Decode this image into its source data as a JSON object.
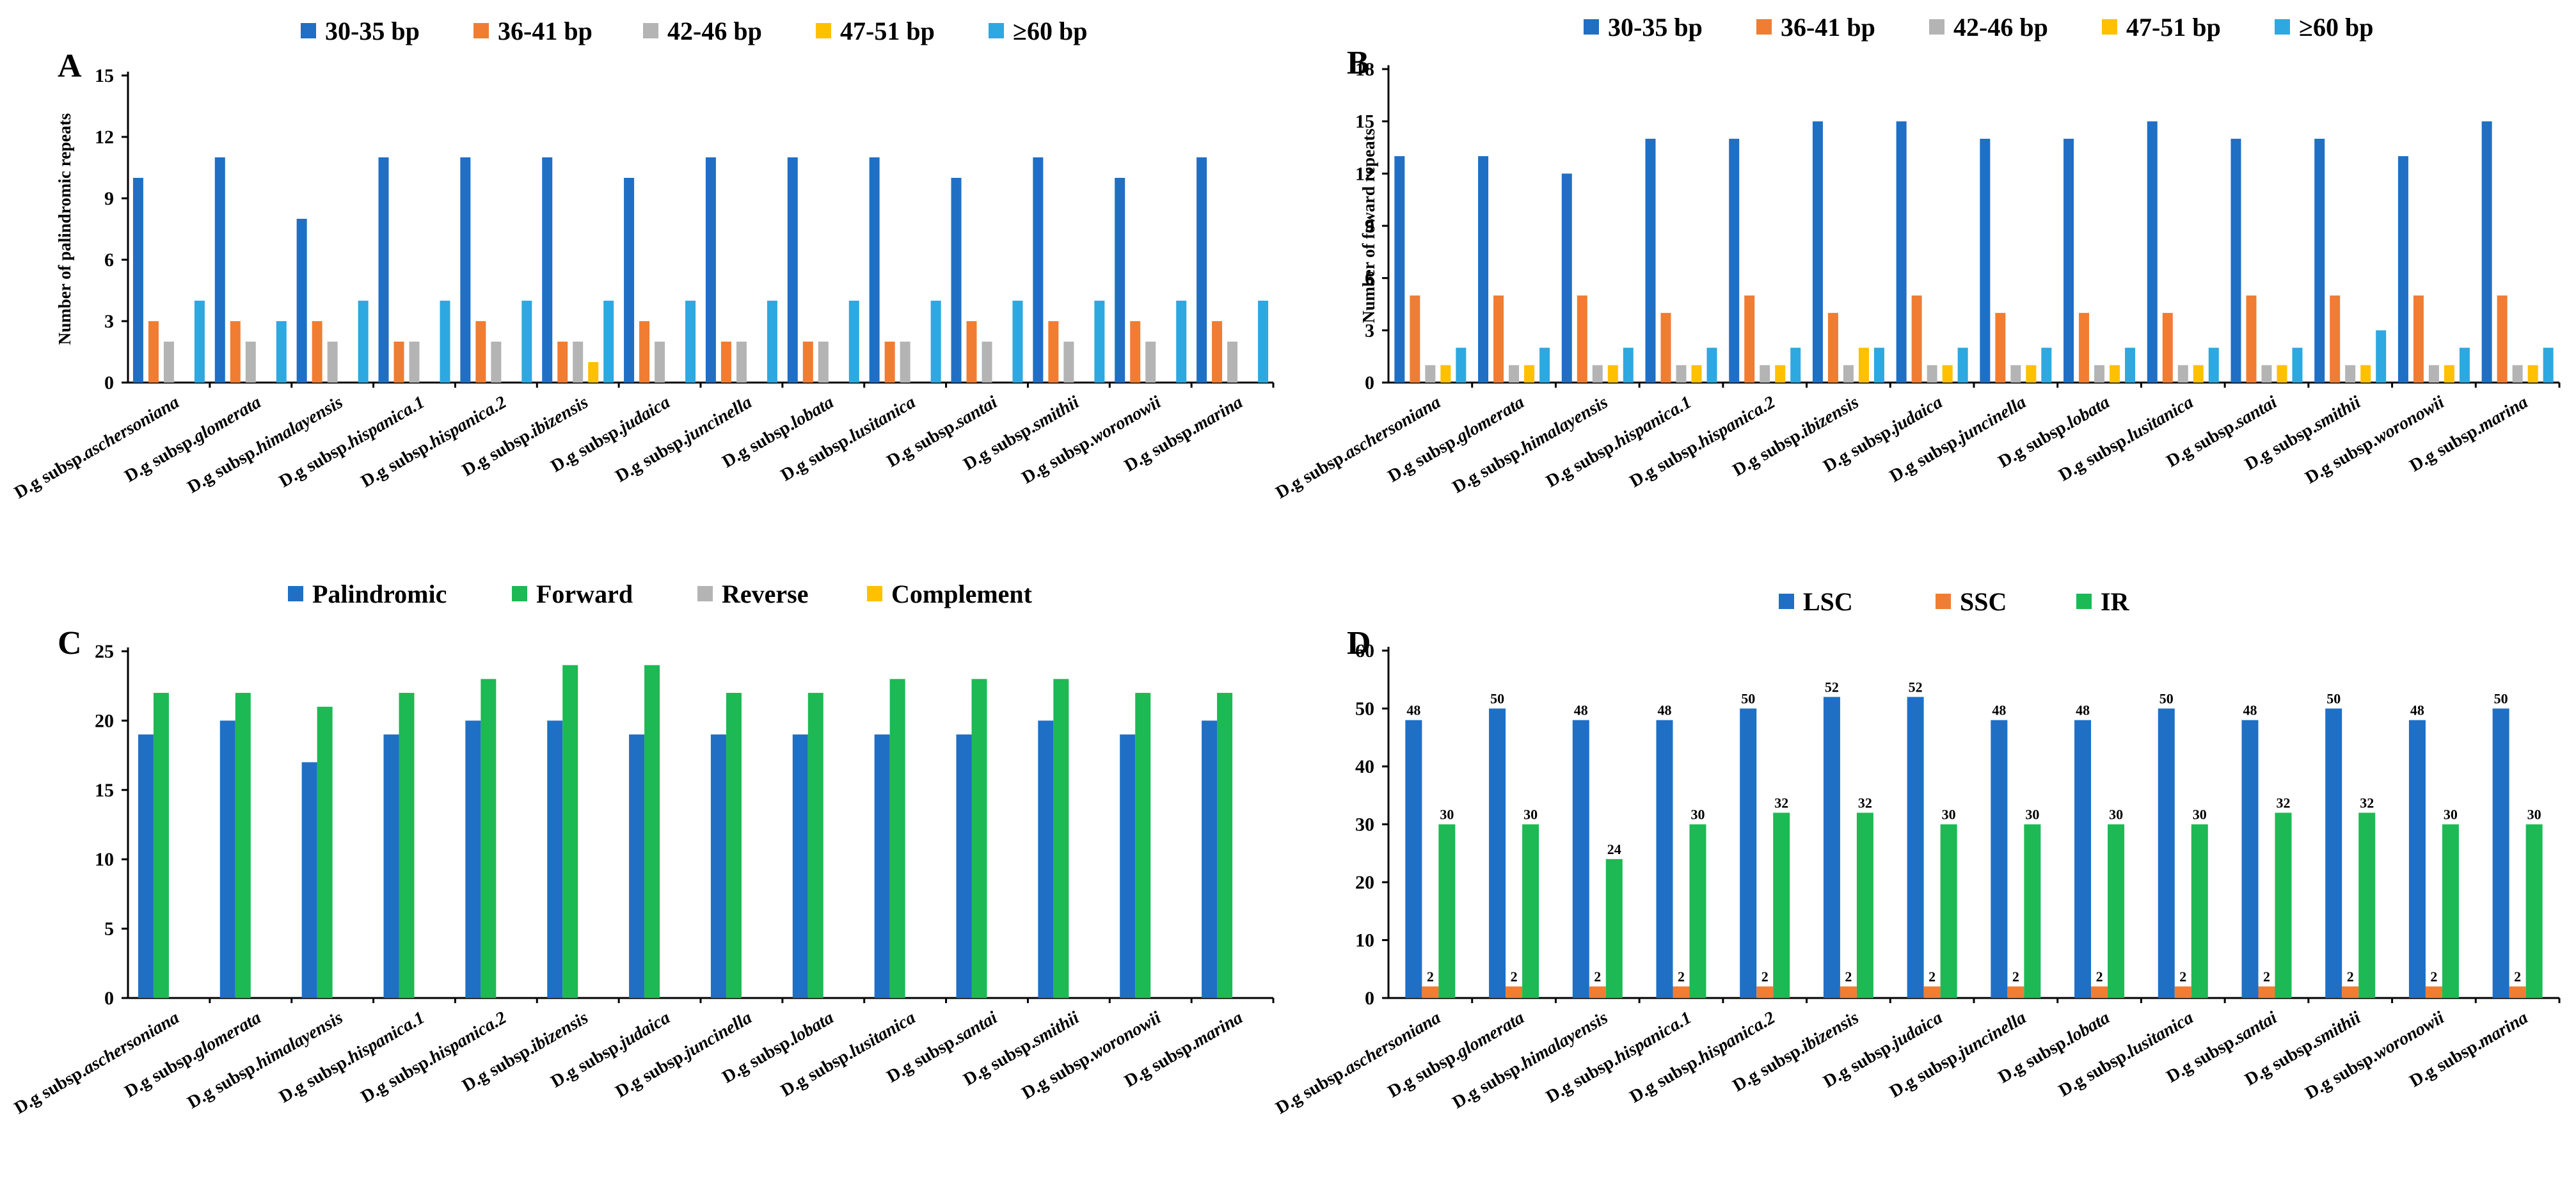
{
  "chart_data": [
    {
      "panel": "A",
      "type": "bar",
      "categories": [
        "D.g subsp.aschersoniana",
        "D.g subsp.glomerata",
        "D.g subsp.himalayensis",
        "D.g subsp.hispanica.1",
        "D.g subsp.hispanica.2",
        "D.g subsp.ibizensis",
        "D.g subsp.judaica",
        "D.g subsp.juncinella",
        "D.g subsp.lobata",
        "D.g subsp.lusitanica",
        "D.g subsp.santai",
        "D.g subsp.smithii",
        "D.g subsp.woronowii",
        "D.g subsp.marina"
      ],
      "series": [
        {
          "name": "30-35 bp",
          "color": "#1F6FC5",
          "values": [
            10,
            11,
            8,
            11,
            11,
            11,
            10,
            11,
            11,
            11,
            10,
            11,
            10,
            11
          ]
        },
        {
          "name": "36-41 bp",
          "color": "#F07D32",
          "values": [
            3,
            3,
            3,
            2,
            3,
            2,
            3,
            2,
            2,
            2,
            3,
            3,
            3,
            3
          ]
        },
        {
          "name": "42-46 bp",
          "color": "#B4B4B4",
          "values": [
            2,
            2,
            2,
            2,
            2,
            2,
            2,
            2,
            2,
            2,
            2,
            2,
            2,
            2
          ]
        },
        {
          "name": "47-51 bp",
          "color": "#FFC000",
          "values": [
            0,
            0,
            0,
            0,
            0,
            1,
            0,
            0,
            0,
            0,
            0,
            0,
            0,
            0
          ]
        },
        {
          "name": "≥60 bp",
          "color": "#2EA8E0",
          "values": [
            4,
            3,
            4,
            4,
            4,
            4,
            4,
            4,
            4,
            4,
            4,
            4,
            4,
            4
          ]
        }
      ],
      "title": "",
      "xlabel": "",
      "ylabel": "Number of palindromic repeats",
      "ylim": [
        0,
        15
      ],
      "yticks": [
        0,
        3,
        6,
        9,
        12,
        15
      ],
      "data_labels": false
    },
    {
      "panel": "B",
      "type": "bar",
      "categories": [
        "D.g subsp.aschersoniana",
        "D.g subsp.glomerata",
        "D.g subsp.himalayensis",
        "D.g subsp.hispanica.1",
        "D.g subsp.hispanica.2",
        "D.g subsp.ibizensis",
        "D.g subsp.judaica",
        "D.g subsp.juncinella",
        "D.g subsp.lobata",
        "D.g subsp.lusitanica",
        "D.g subsp.santai",
        "D.g subsp.smithii",
        "D.g subsp.woronowii",
        "D.g subsp.marina"
      ],
      "series": [
        {
          "name": "30-35 bp",
          "color": "#1F6FC5",
          "values": [
            13,
            13,
            12,
            14,
            14,
            15,
            15,
            14,
            14,
            15,
            14,
            14,
            13,
            15
          ]
        },
        {
          "name": "36-41 bp",
          "color": "#F07D32",
          "values": [
            5,
            5,
            5,
            4,
            5,
            4,
            5,
            4,
            4,
            4,
            5,
            5,
            5,
            5
          ]
        },
        {
          "name": "42-46 bp",
          "color": "#B4B4B4",
          "values": [
            1,
            1,
            1,
            1,
            1,
            1,
            1,
            1,
            1,
            1,
            1,
            1,
            1,
            1
          ]
        },
        {
          "name": "47-51 bp",
          "color": "#FFC000",
          "values": [
            1,
            1,
            1,
            1,
            1,
            2,
            1,
            1,
            1,
            1,
            1,
            1,
            1,
            1
          ]
        },
        {
          "name": "≥60 bp",
          "color": "#2EA8E0",
          "values": [
            2,
            2,
            2,
            2,
            2,
            2,
            2,
            2,
            2,
            2,
            2,
            3,
            2,
            2
          ]
        }
      ],
      "title": "",
      "xlabel": "",
      "ylabel": "Number of foward repeats",
      "ylim": [
        0,
        18
      ],
      "yticks": [
        0,
        3,
        6,
        9,
        12,
        15,
        18
      ],
      "data_labels": false
    },
    {
      "panel": "C",
      "type": "bar",
      "categories": [
        "D.g subsp.aschersoniana",
        "D.g subsp.glomerata",
        "D.g subsp.himalayensis",
        "D.g subsp.hispanica.1",
        "D.g subsp.hispanica.2",
        "D.g subsp.ibizensis",
        "D.g subsp.judaica",
        "D.g subsp.juncinella",
        "D.g subsp.lobata",
        "D.g subsp.lusitanica",
        "D.g subsp.santai",
        "D.g subsp.smithii",
        "D.g subsp.woronowii",
        "D.g subsp.marina"
      ],
      "series": [
        {
          "name": "Palindromic",
          "color": "#1F6FC5",
          "values": [
            19,
            20,
            17,
            19,
            20,
            20,
            19,
            19,
            19,
            19,
            19,
            20,
            19,
            20
          ]
        },
        {
          "name": "Forward",
          "color": "#1DB954",
          "values": [
            22,
            22,
            21,
            22,
            23,
            24,
            24,
            22,
            22,
            23,
            23,
            23,
            22,
            22
          ]
        },
        {
          "name": "Reverse",
          "color": "#B4B4B4",
          "values": [
            0,
            0,
            0,
            0,
            0,
            0,
            0,
            0,
            0,
            0,
            0,
            0,
            0,
            0
          ]
        },
        {
          "name": "Complement",
          "color": "#FFC000",
          "values": [
            0,
            0,
            0,
            0,
            0,
            0,
            0,
            0,
            0,
            0,
            0,
            0,
            0,
            0
          ]
        }
      ],
      "title": "",
      "xlabel": "",
      "ylabel": "",
      "ylim": [
        0,
        25
      ],
      "yticks": [
        0,
        5,
        10,
        15,
        20,
        25
      ],
      "data_labels": false
    },
    {
      "panel": "D",
      "type": "bar",
      "categories": [
        "D.g subsp.aschersoniana",
        "D.g subsp.glomerata",
        "D.g subsp.himalayensis",
        "D.g subsp.hispanica.1",
        "D.g subsp.hispanica.2",
        "D.g subsp.ibizensis",
        "D.g subsp.judaica",
        "D.g subsp.juncinella",
        "D.g subsp.lobata",
        "D.g subsp.lusitanica",
        "D.g subsp.santai",
        "D.g subsp.smithii",
        "D.g subsp.woronowii",
        "D.g subsp.marina"
      ],
      "series": [
        {
          "name": "LSC",
          "color": "#1F6FC5",
          "values": [
            48,
            50,
            48,
            48,
            50,
            52,
            52,
            48,
            48,
            50,
            48,
            50,
            48,
            50
          ]
        },
        {
          "name": "SSC",
          "color": "#F07D32",
          "values": [
            2,
            2,
            2,
            2,
            2,
            2,
            2,
            2,
            2,
            2,
            2,
            2,
            2,
            2
          ]
        },
        {
          "name": "IR",
          "color": "#1DB954",
          "values": [
            30,
            30,
            24,
            30,
            32,
            32,
            30,
            30,
            30,
            30,
            32,
            32,
            30,
            30
          ]
        }
      ],
      "title": "",
      "xlabel": "",
      "ylabel": "",
      "ylim": [
        0,
        60
      ],
      "yticks": [
        0,
        10,
        20,
        30,
        40,
        50,
        60
      ],
      "data_labels": true
    }
  ]
}
